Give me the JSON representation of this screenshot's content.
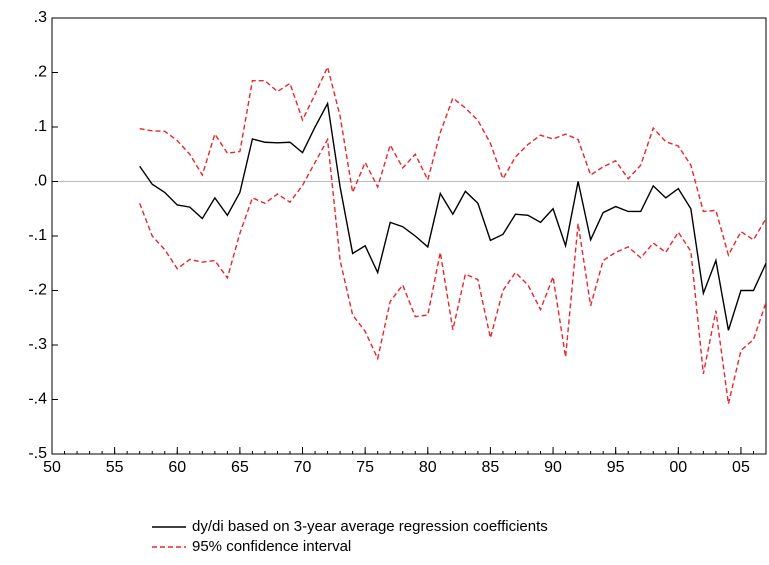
{
  "chart_data": {
    "type": "line",
    "x": [
      1957,
      1958,
      1959,
      1960,
      1961,
      1962,
      1963,
      1964,
      1965,
      1966,
      1967,
      1968,
      1969,
      1970,
      1971,
      1972,
      1973,
      1974,
      1975,
      1976,
      1977,
      1978,
      1979,
      1980,
      1981,
      1982,
      1983,
      1984,
      1985,
      1986,
      1987,
      1988,
      1989,
      1990,
      1991,
      1992,
      1993,
      1994,
      1995,
      1996,
      1997,
      1998,
      1999,
      2000,
      2001,
      2002,
      2003,
      2004,
      2005,
      2006,
      2007
    ],
    "series": [
      {
        "name": "dy/di based on 3-year average regression coefficients",
        "color": "#000000",
        "dash": "none",
        "values": [
          0.028,
          -0.005,
          -0.02,
          -0.043,
          -0.047,
          -0.068,
          -0.03,
          -0.062,
          -0.02,
          0.078,
          0.072,
          0.071,
          0.072,
          0.053,
          0.1,
          0.143,
          -0.01,
          -0.132,
          -0.118,
          -0.167,
          -0.075,
          -0.083,
          -0.1,
          -0.12,
          -0.022,
          -0.06,
          -0.018,
          -0.04,
          -0.108,
          -0.097,
          -0.06,
          -0.062,
          -0.075,
          -0.05,
          -0.118,
          0.0,
          -0.107,
          -0.057,
          -0.046,
          -0.055,
          -0.055,
          -0.008,
          -0.03,
          -0.013,
          -0.05,
          -0.205,
          -0.145,
          -0.273,
          -0.2,
          -0.2,
          -0.15
        ]
      },
      {
        "name": "95% confidence interval",
        "color": "#e8262b",
        "dash": "5,3",
        "values": [
          0.097,
          0.093,
          0.092,
          0.075,
          0.05,
          0.012,
          0.087,
          0.052,
          0.055,
          0.185,
          0.185,
          0.165,
          0.18,
          0.113,
          0.16,
          0.21,
          0.12,
          -0.02,
          0.035,
          -0.01,
          0.067,
          0.025,
          0.05,
          0.003,
          0.09,
          0.153,
          0.135,
          0.112,
          0.07,
          0.005,
          0.045,
          0.068,
          0.085,
          0.078,
          0.087,
          0.077,
          0.012,
          0.027,
          0.038,
          0.005,
          0.03,
          0.098,
          0.073,
          0.065,
          0.03,
          -0.055,
          -0.053,
          -0.135,
          -0.092,
          -0.107,
          -0.068
        ]
      },
      {
        "color": "#e8262b",
        "dash": "5,3",
        "values": [
          -0.04,
          -0.1,
          -0.125,
          -0.16,
          -0.143,
          -0.148,
          -0.145,
          -0.177,
          -0.095,
          -0.03,
          -0.04,
          -0.023,
          -0.038,
          -0.007,
          0.035,
          0.077,
          -0.145,
          -0.245,
          -0.275,
          -0.325,
          -0.22,
          -0.19,
          -0.248,
          -0.245,
          -0.13,
          -0.272,
          -0.17,
          -0.18,
          -0.287,
          -0.2,
          -0.167,
          -0.19,
          -0.235,
          -0.175,
          -0.322,
          -0.077,
          -0.228,
          -0.145,
          -0.13,
          -0.12,
          -0.14,
          -0.113,
          -0.13,
          -0.093,
          -0.128,
          -0.353,
          -0.237,
          -0.408,
          -0.31,
          -0.29,
          -0.222
        ]
      }
    ],
    "xlim": [
      1950,
      2007
    ],
    "xticks": [
      {
        "value": 1950,
        "label": "50"
      },
      {
        "value": 1955,
        "label": "55"
      },
      {
        "value": 1960,
        "label": "60"
      },
      {
        "value": 1965,
        "label": "65"
      },
      {
        "value": 1970,
        "label": "70"
      },
      {
        "value": 1975,
        "label": "75"
      },
      {
        "value": 1980,
        "label": "80"
      },
      {
        "value": 1985,
        "label": "85"
      },
      {
        "value": 1990,
        "label": "90"
      },
      {
        "value": 1995,
        "label": "95"
      },
      {
        "value": 2000,
        "label": "00"
      },
      {
        "value": 2005,
        "label": "05"
      }
    ],
    "ylim": [
      -0.5,
      0.3
    ],
    "yticks": [
      {
        "value": -0.5,
        "label": "-.5"
      },
      {
        "value": -0.4,
        "label": "-.4"
      },
      {
        "value": -0.3,
        "label": "-.3"
      },
      {
        "value": -0.2,
        "label": "-.2"
      },
      {
        "value": -0.1,
        "label": "-.1"
      },
      {
        "value": 0,
        "label": ".0"
      },
      {
        "value": 0.1,
        "label": ".1"
      },
      {
        "value": 0.2,
        "label": ".2"
      },
      {
        "value": 0.3,
        "label": ".3"
      }
    ],
    "zero_line": true,
    "grid": false,
    "legend": "bottom"
  }
}
